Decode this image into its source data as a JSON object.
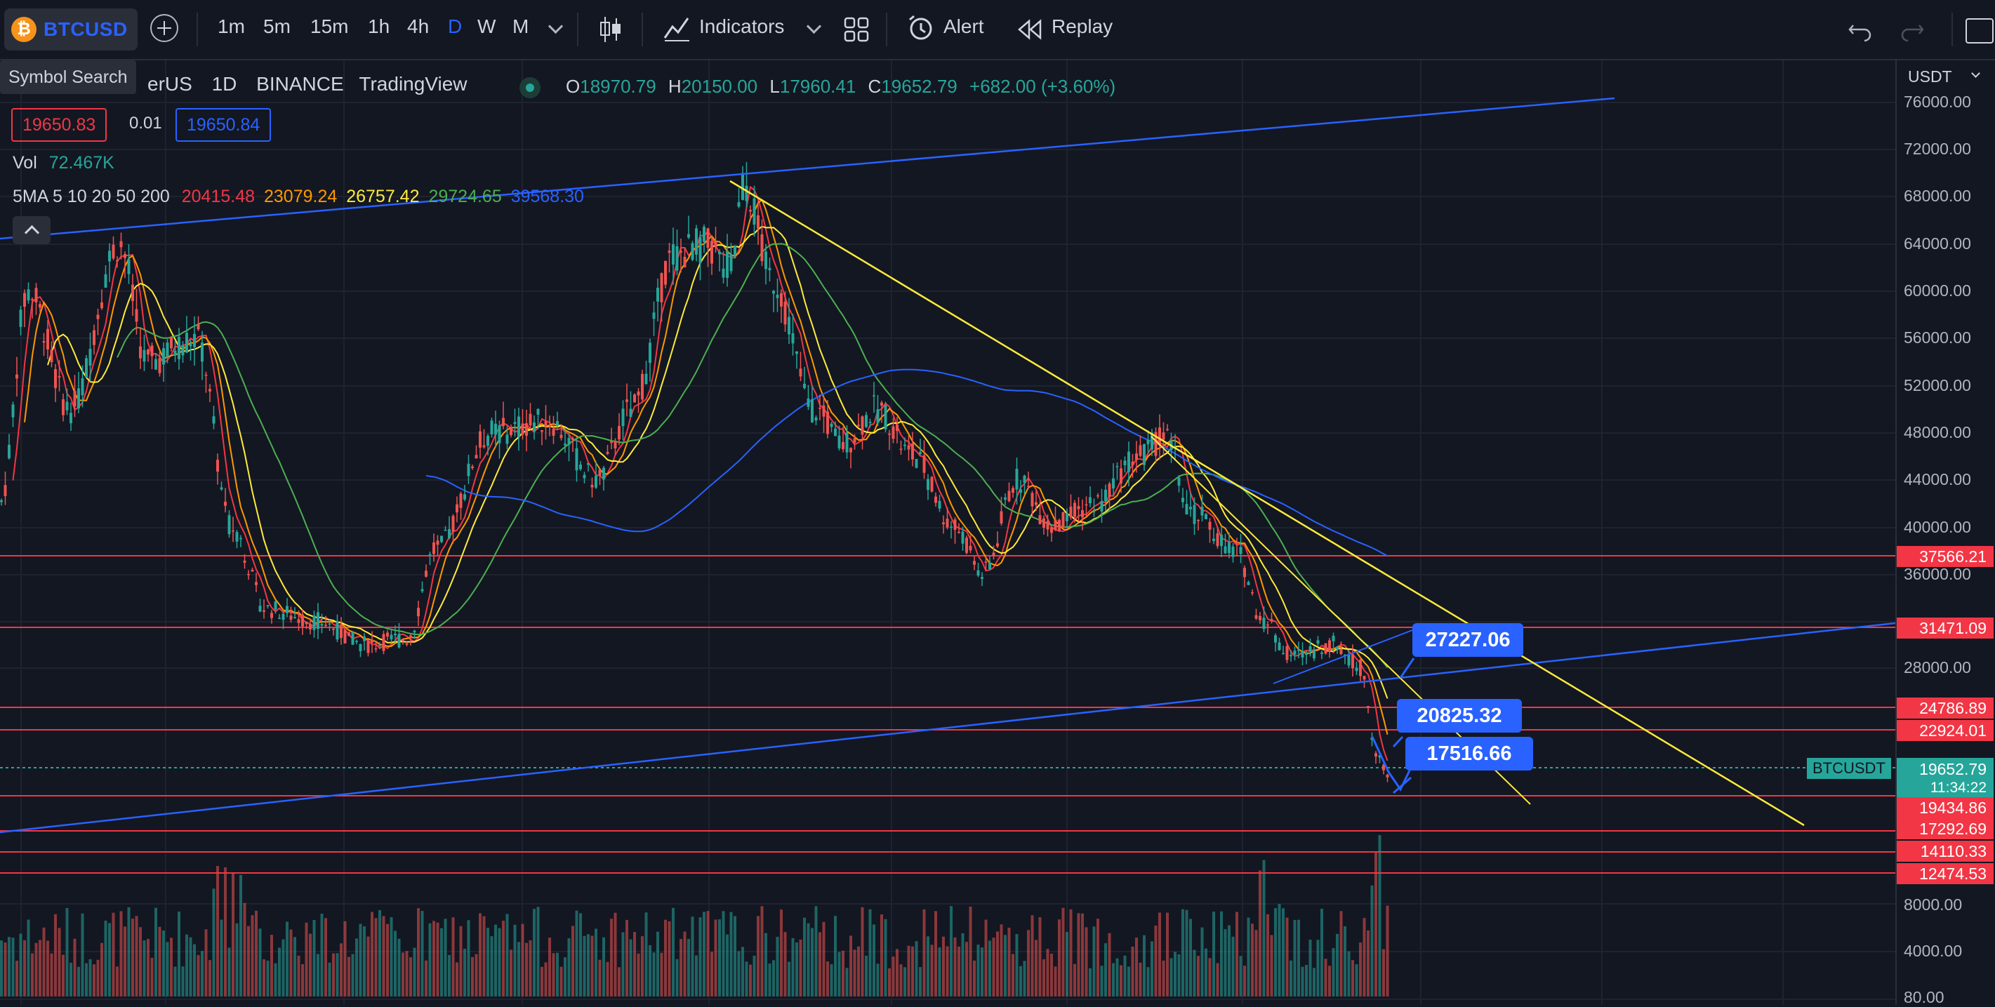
{
  "toolbar": {
    "symbol": "BTCUSD",
    "symbol_icon_letter": "₿",
    "intervals": [
      "1m",
      "5m",
      "15m",
      "1h",
      "4h",
      "D",
      "W",
      "M"
    ],
    "active_interval": "D",
    "indicators_label": "Indicators",
    "alert_label": "Alert",
    "replay_label": "Replay",
    "tooltip": "Symbol Search"
  },
  "legend": {
    "title_visible": "erUS",
    "interval": "1D",
    "exchange": "BINANCE",
    "source": "TradingView",
    "open_label": "O",
    "open": "18970.79",
    "high_label": "H",
    "high": "20150.00",
    "low_label": "L",
    "low": "17960.41",
    "close_label": "C",
    "close": "19652.79",
    "change": "+682.00 (+3.60%)",
    "bid": "19650.83",
    "spread": "0.01",
    "ask": "19650.84",
    "vol_label": "Vol",
    "vol_value": "72.467K",
    "ma_label": "5MA 5 10 20 50 200",
    "ma_values": [
      "20415.48",
      "23079.24",
      "26757.42",
      "29724.65",
      "39568.30"
    ]
  },
  "axis": {
    "currency": "USDT",
    "labels": [
      "76000.00",
      "72000.00",
      "68000.00",
      "64000.00",
      "60000.00",
      "56000.00",
      "52000.00",
      "48000.00",
      "44000.00",
      "40000.00",
      "36000.00",
      "28000.00"
    ],
    "volume_labels": [
      "8000.00",
      "4000.00",
      "80.00"
    ],
    "level_tags": [
      "37566.21",
      "31471.09",
      "24786.89",
      "22924.01",
      "19434.86",
      "17292.69",
      "14110.33",
      "12474.53"
    ],
    "current_price": "19652.79",
    "countdown": "11:34:22",
    "symbol_tag": "BTCUSDT"
  },
  "callouts": [
    "27227.06",
    "20825.32",
    "17516.66"
  ],
  "colors": {
    "background": "#131722",
    "up": "#26a69a",
    "down": "#ef5350",
    "accent": "#2962ff",
    "ma5": "#f23645",
    "ma10": "#ff9800",
    "ma20": "#ffeb3b",
    "ma50": "#4caf50",
    "ma200": "#2962ff"
  }
}
